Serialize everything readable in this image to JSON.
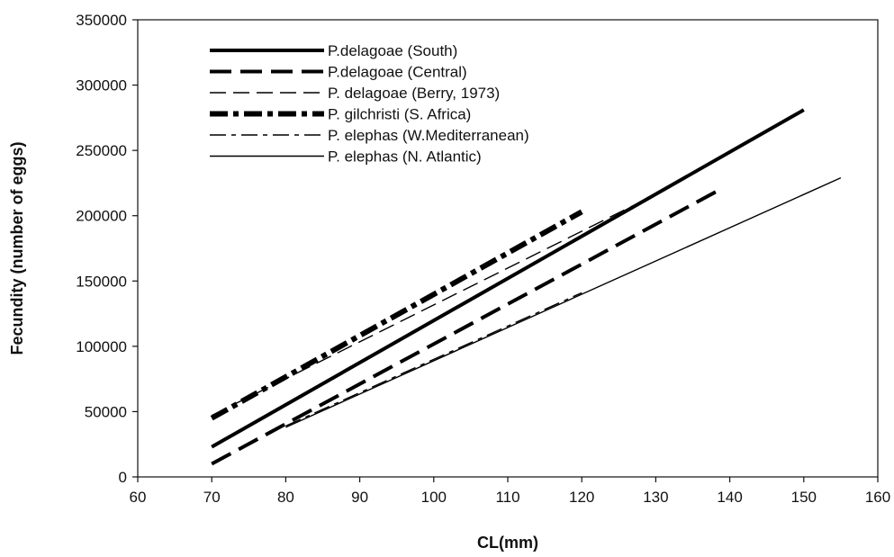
{
  "chart_data": {
    "type": "line",
    "title": "",
    "xlabel": "CL(mm)",
    "ylabel": "Fecundity (number of eggs)",
    "xlim": [
      60,
      160
    ],
    "ylim": [
      0,
      350000
    ],
    "x_ticks": [
      60,
      70,
      80,
      90,
      100,
      110,
      120,
      130,
      140,
      150,
      160
    ],
    "y_ticks": [
      0,
      50000,
      100000,
      150000,
      200000,
      250000,
      300000,
      350000
    ],
    "grid": false,
    "legend_position": "top-left",
    "series": [
      {
        "name": "P.delagoae (South)",
        "style": "solid-thick",
        "x": [
          70,
          150
        ],
        "y": [
          23000,
          281000
        ]
      },
      {
        "name": "P.delagoae (Central)",
        "style": "dashed-thick",
        "x": [
          70,
          139
        ],
        "y": [
          10000,
          221000
        ]
      },
      {
        "name": "P. delagoae (Berry, 1973)",
        "style": "dashed-thin",
        "x": [
          70,
          132
        ],
        "y": [
          47000,
          222000
        ]
      },
      {
        "name": "P. gilchristi (S. Africa)",
        "style": "dashdot-thick",
        "x": [
          70,
          120
        ],
        "y": [
          45000,
          203000
        ]
      },
      {
        "name": "P. elephas (W.Mediterranean)",
        "style": "dashdot-thin",
        "x": [
          80,
          120
        ],
        "y": [
          39000,
          141000
        ]
      },
      {
        "name": "P. elephas (N. Atlantic)",
        "style": "solid-thin",
        "x": [
          80,
          155
        ],
        "y": [
          38000,
          229000
        ]
      }
    ]
  }
}
